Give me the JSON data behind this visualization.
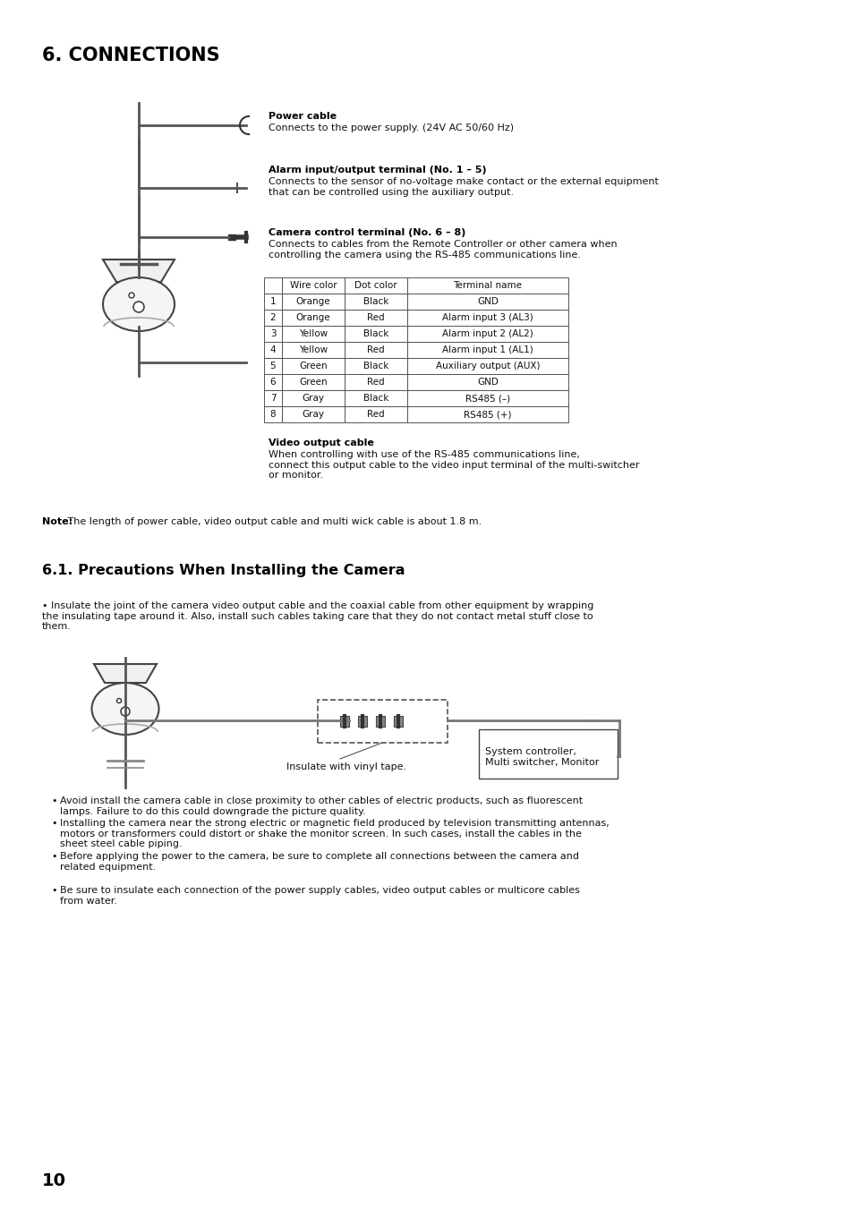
{
  "bg_color": "#ffffff",
  "title": "6. CONNECTIONS",
  "section2_title": "6.1. Precautions When Installing the Camera",
  "power_cable_bold": "Power cable",
  "power_cable_text": "Connects to the power supply. (24V AC 50/60 Hz)",
  "alarm_bold": "Alarm input/output terminal (No. 1 – 5)",
  "alarm_text": "Connects to the sensor of no-voltage make contact or the external equipment\nthat can be controlled using the auxiliary output.",
  "camera_ctrl_bold": "Camera control terminal (No. 6 – 8)",
  "camera_ctrl_text": "Connects to cables from the Remote Controller or other camera when\ncontrolling the camera using the RS-485 communications line.",
  "video_bold": "Video output cable",
  "video_text": "When controlling with use of the RS-485 communications line,\nconnect this output cable to the video input terminal of the multi-switcher\nor monitor.",
  "note_bold": "Note:",
  "note_text": " The length of power cable, video output cable and multi wick cable is about 1.8 m.",
  "table_headers": [
    "",
    "Wire color",
    "Dot color",
    "Terminal name"
  ],
  "table_rows": [
    [
      "1",
      "Orange",
      "Black",
      "GND"
    ],
    [
      "2",
      "Orange",
      "Red",
      "Alarm input 3 (AL3)"
    ],
    [
      "3",
      "Yellow",
      "Black",
      "Alarm input 2 (AL2)"
    ],
    [
      "4",
      "Yellow",
      "Red",
      "Alarm input 1 (AL1)"
    ],
    [
      "5",
      "Green",
      "Black",
      "Auxiliary output (AUX)"
    ],
    [
      "6",
      "Green",
      "Red",
      "GND"
    ],
    [
      "7",
      "Gray",
      "Black",
      "RS485 (–)"
    ],
    [
      "8",
      "Gray",
      "Red",
      "RS485 (+)"
    ]
  ],
  "bullet1": "Insulate the joint of the camera video output cable and the coaxial cable from other equipment by wrapping\nthe insulating tape around it. Also, install such cables taking care that they do not contact metal stuff close to\nthem.",
  "bullet2": "Avoid install the camera cable in close proximity to other cables of electric products, such as fluorescent\nlamps. Failure to do this could downgrade the picture quality.",
  "bullet3": "Installing the camera near the strong electric or magnetic field produced by television transmitting antennas,\nmotors or transformers could distort or shake the monitor screen. In such cases, install the cables in the\nsheet steel cable piping.",
  "bullet4": "Before applying the power to the camera, be sure to complete all connections between the camera and\nrelated equipment.",
  "bullet5": "Be sure to insulate each connection of the power supply cables, video output cables or multicore cables\nfrom water.",
  "page_num": "10",
  "insulate_label": "Insulate with vinyl tape.",
  "system_ctrl_label": "System controller,\nMulti switcher, Monitor"
}
